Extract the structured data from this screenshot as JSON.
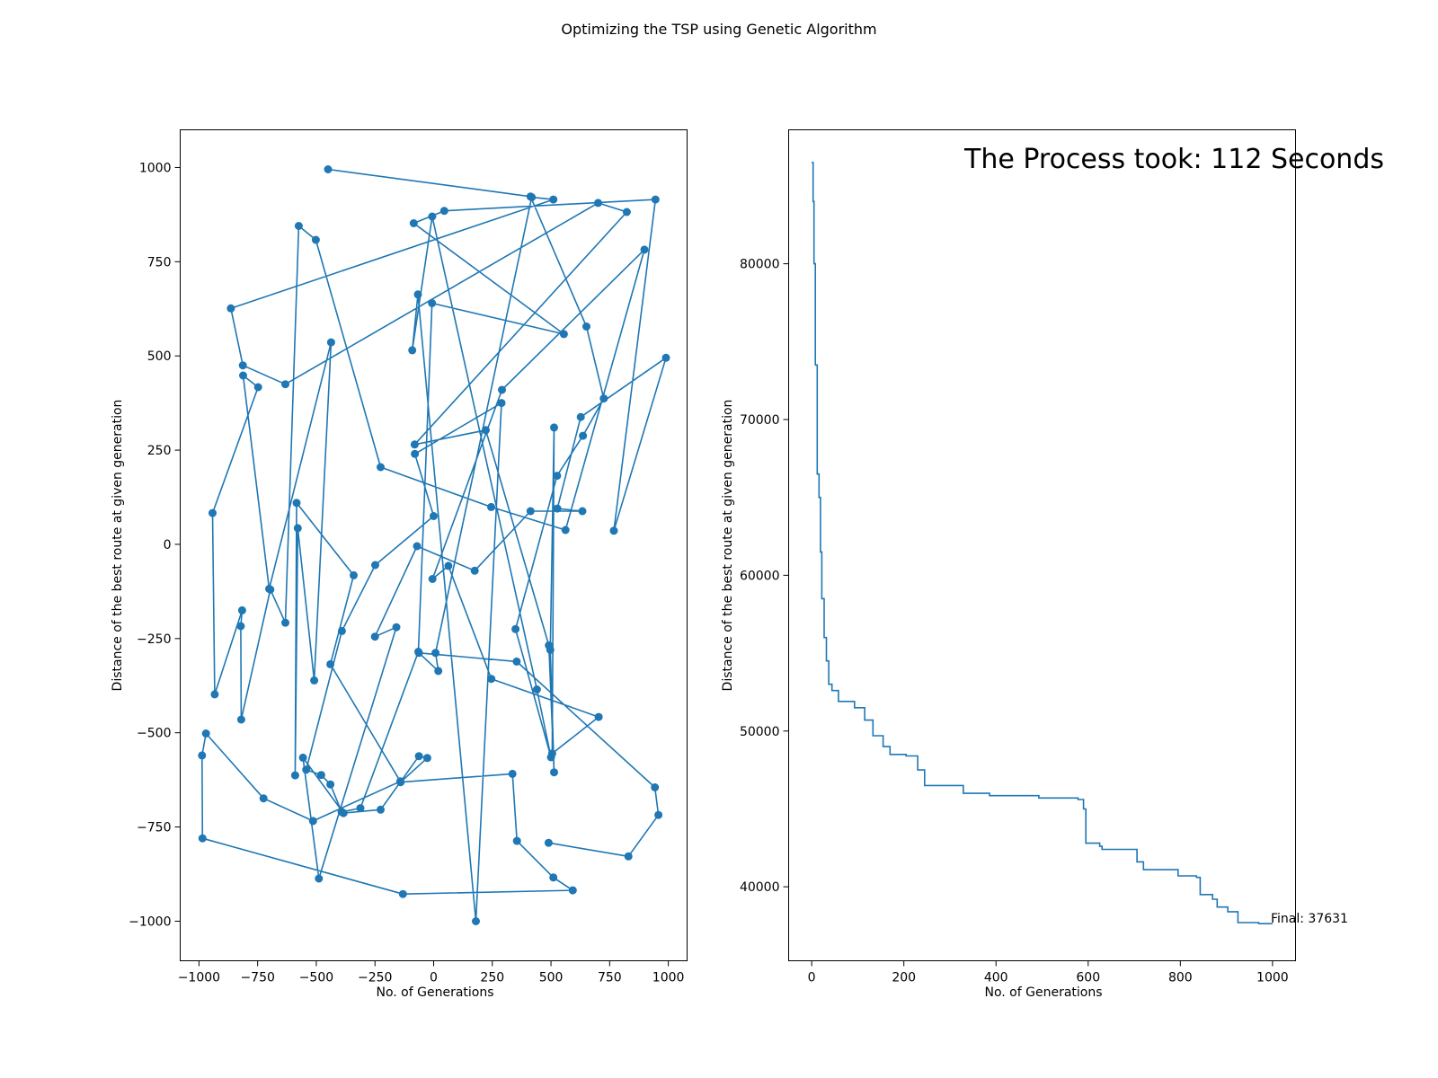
{
  "figure": {
    "suptitle": "Optimizing the TSP using Genetic Algorithm",
    "line_color": "#1f77b4"
  },
  "chart_data": [
    {
      "type": "line",
      "markers": true,
      "xlabel": "No. of Generations",
      "ylabel": "Distance of the best route at given generation",
      "xlim": [
        -1080,
        1080
      ],
      "ylim": [
        -1105,
        1100
      ],
      "xticks": [
        -1000,
        -750,
        -500,
        -250,
        0,
        250,
        500,
        750,
        1000
      ],
      "xtick_labels": [
        "−1000",
        "−750",
        "−500",
        "−250",
        "0",
        "250",
        "500",
        "750",
        "1000"
      ],
      "yticks": [
        1000,
        750,
        500,
        250,
        0,
        -250,
        -500,
        -750,
        -1000
      ],
      "ytick_labels": [
        "1000",
        "750",
        "500",
        "250",
        "0",
        "−250",
        "−500",
        "−750",
        "−1000"
      ],
      "points": [
        [
          -450,
          995
        ],
        [
          413,
          923
        ],
        [
          651,
          578
        ],
        [
          725,
          387
        ],
        [
          636,
          288
        ],
        [
          526,
          182
        ],
        [
          349,
          -225
        ],
        [
          500,
          -565
        ],
        [
          440,
          -385
        ],
        [
          -6,
          870
        ],
        [
          -91,
          515
        ],
        [
          -67,
          663
        ],
        [
          180,
          -1000
        ],
        [
          289,
          375
        ],
        [
          -80,
          240
        ],
        [
          0,
          75
        ],
        [
          -249,
          -55
        ],
        [
          -391,
          -230
        ],
        [
          -543,
          -598
        ],
        [
          -479,
          -612
        ],
        [
          -440,
          -637
        ],
        [
          -392,
          -710
        ],
        [
          -312,
          -700
        ],
        [
          -65,
          -285
        ],
        [
          -7,
          640
        ],
        [
          555,
          558
        ],
        [
          -85,
          852
        ],
        [
          45,
          885
        ],
        [
          945,
          915
        ],
        [
          768,
          36
        ],
        [
          990,
          495
        ],
        [
          627,
          338
        ],
        [
          527,
          95
        ],
        [
          634,
          88
        ],
        [
          413,
          88
        ],
        [
          175,
          -70
        ],
        [
          -71,
          -5
        ],
        [
          -250,
          -245
        ],
        [
          -159,
          -220
        ],
        [
          -489,
          -887
        ],
        [
          -557,
          -566
        ],
        [
          -384,
          -713
        ],
        [
          -226,
          -704
        ],
        [
          -63,
          -562
        ],
        [
          -27,
          -567
        ],
        [
          -141,
          -631
        ],
        [
          336,
          -609
        ],
        [
          355,
          -787
        ],
        [
          510,
          -884
        ],
        [
          593,
          -918
        ],
        [
          -131,
          -928
        ],
        [
          -985,
          -780
        ],
        [
          -987,
          -560
        ],
        [
          -970,
          -502
        ],
        [
          -725,
          -674
        ],
        [
          -514,
          -734
        ],
        [
          -142,
          -629
        ],
        [
          -440,
          -318
        ],
        [
          -341,
          -82
        ],
        [
          -584,
          110
        ],
        [
          -590,
          -613
        ],
        [
          -579,
          43
        ],
        [
          -509,
          -361
        ],
        [
          -437,
          536
        ],
        [
          -701,
          -118
        ],
        [
          -812,
          448
        ],
        [
          -748,
          417
        ],
        [
          -942,
          83
        ],
        [
          -933,
          -398
        ],
        [
          -816,
          -175
        ],
        [
          -822,
          -217
        ],
        [
          -820,
          -465
        ],
        [
          -696,
          -120
        ],
        [
          -632,
          -208
        ],
        [
          -575,
          845
        ],
        [
          -502,
          808
        ],
        [
          -226,
          205
        ],
        [
          245,
          99
        ],
        [
          562,
          38
        ],
        [
          898,
          782
        ],
        [
          291,
          410
        ],
        [
          -5,
          -92
        ],
        [
          63,
          -57
        ],
        [
          246,
          -357
        ],
        [
          703,
          -458
        ],
        [
          505,
          -555
        ],
        [
          513,
          310
        ],
        [
          497,
          -280
        ],
        [
          513,
          -605
        ],
        [
          491,
          -268
        ],
        [
          222,
          303
        ],
        [
          -81,
          265
        ],
        [
          823,
          882
        ],
        [
          701,
          906
        ],
        [
          -632,
          425
        ],
        [
          -813,
          475
        ],
        [
          -864,
          626
        ],
        [
          510,
          915
        ],
        [
          418,
          921
        ],
        [
          8,
          -288
        ],
        [
          20,
          -336
        ],
        [
          -63,
          -288
        ],
        [
          354,
          -311
        ],
        [
          943,
          -645
        ],
        [
          958,
          -718
        ],
        [
          830,
          -828
        ],
        [
          490,
          -792
        ]
      ]
    },
    {
      "type": "line",
      "xlabel": "No. of Generations",
      "ylabel": "Distance of the best route at given generation",
      "xlim": [
        -50,
        1050
      ],
      "ylim": [
        35250,
        88600
      ],
      "xticks": [
        0,
        200,
        400,
        600,
        800,
        1000
      ],
      "xtick_labels": [
        "0",
        "200",
        "400",
        "600",
        "800",
        "1000"
      ],
      "yticks": [
        40000,
        50000,
        60000,
        70000,
        80000
      ],
      "ytick_labels": [
        "40000",
        "50000",
        "60000",
        "70000",
        "80000"
      ],
      "steps": [
        [
          0,
          86500
        ],
        [
          3,
          84000
        ],
        [
          5,
          80000
        ],
        [
          8,
          73500
        ],
        [
          12,
          66500
        ],
        [
          16,
          65000
        ],
        [
          19,
          61500
        ],
        [
          22,
          58500
        ],
        [
          27,
          56000
        ],
        [
          32,
          54500
        ],
        [
          37,
          53000
        ],
        [
          44,
          52600
        ],
        [
          58,
          51900
        ],
        [
          93,
          51500
        ],
        [
          115,
          50700
        ],
        [
          133,
          49700
        ],
        [
          155,
          49000
        ],
        [
          170,
          48500
        ],
        [
          205,
          48400
        ],
        [
          230,
          47500
        ],
        [
          245,
          46500
        ],
        [
          329,
          46000
        ],
        [
          386,
          45850
        ],
        [
          493,
          45700
        ],
        [
          578,
          45600
        ],
        [
          590,
          45000
        ],
        [
          595,
          42800
        ],
        [
          625,
          42600
        ],
        [
          630,
          42400
        ],
        [
          660,
          42400
        ],
        [
          706,
          41600
        ],
        [
          720,
          41100
        ],
        [
          795,
          40700
        ],
        [
          835,
          40600
        ],
        [
          843,
          39500
        ],
        [
          870,
          39200
        ],
        [
          880,
          38700
        ],
        [
          903,
          38400
        ],
        [
          925,
          37700
        ],
        [
          970,
          37631
        ],
        [
          1000,
          37631
        ]
      ],
      "annotations": {
        "final": "Final: 37631",
        "process_time": "The Process took: 112 Seconds"
      }
    }
  ]
}
